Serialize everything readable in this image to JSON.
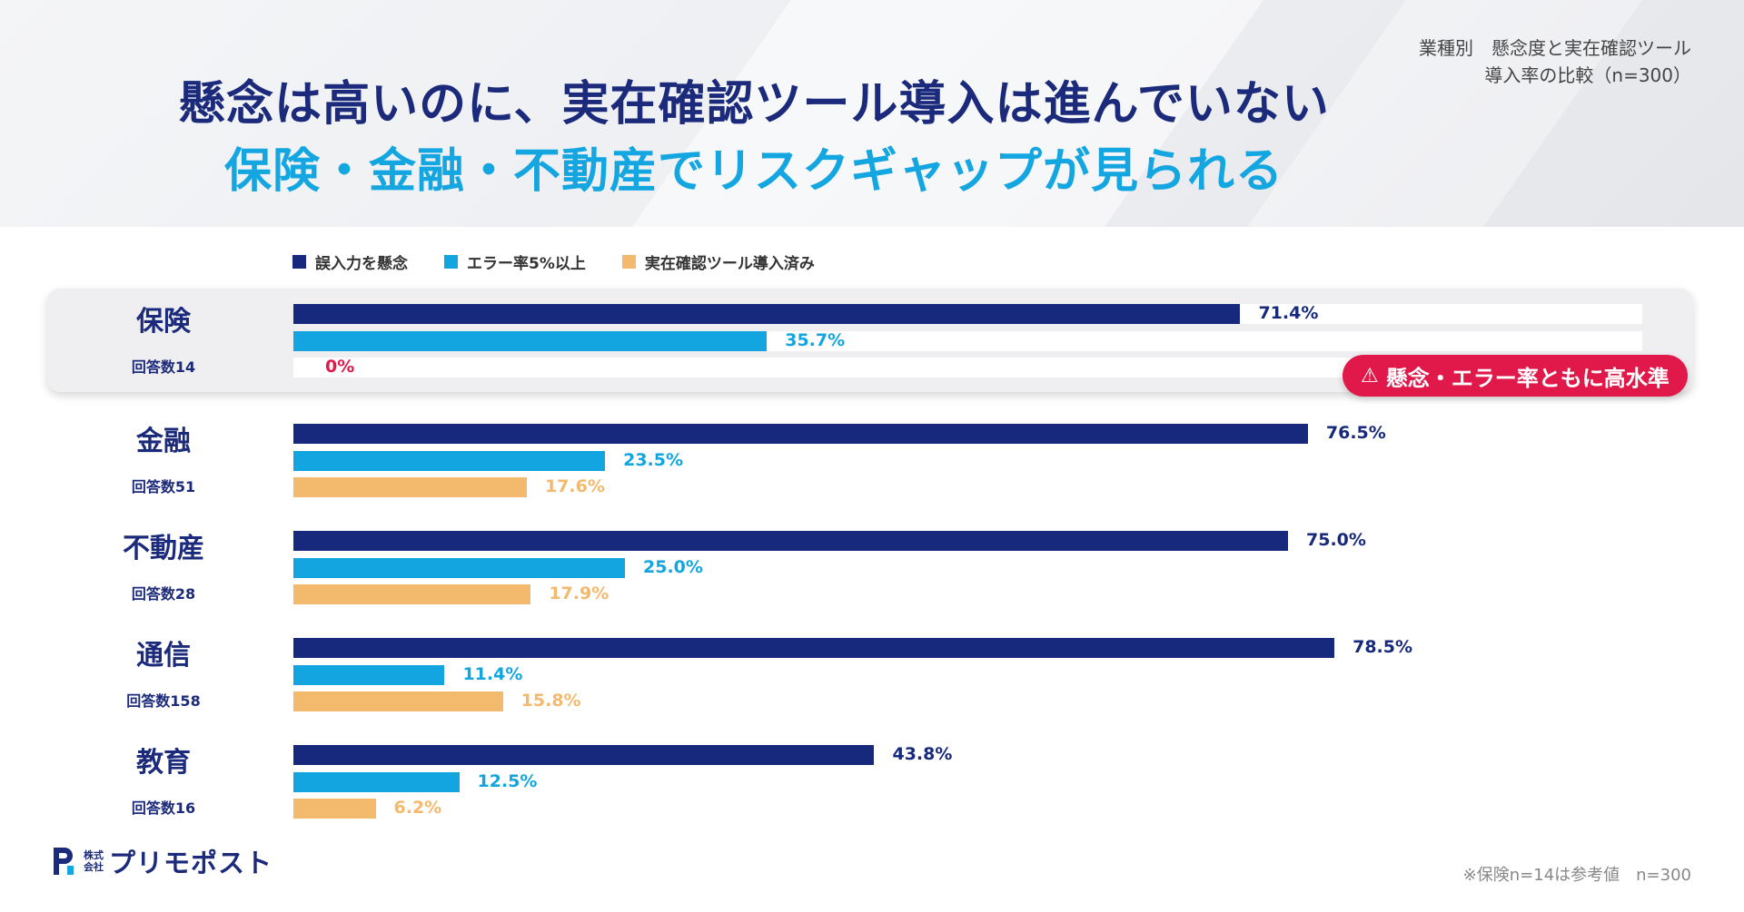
{
  "header": {
    "title_line1": "懸念は高いのに、実在確認ツール導入は進んでいない",
    "title_line2": "保険・金融・不動産でリスクギャップが見られる",
    "subnote_line1": "業種別　懸念度と実在確認ツール",
    "subnote_line2": "導入率の比較（n=300）"
  },
  "badge": {
    "icon": "warning-triangle-icon",
    "text": "懸念・エラー率ともに高水準"
  },
  "logo": {
    "small_line1": "株式",
    "small_line2": "会社",
    "name": "プリモポスト"
  },
  "footnote": "※保険n=14は参考値　n=300",
  "colors": {
    "concern": "#17297c",
    "error": "#12a5e0",
    "tool": "#f3b96d",
    "zero_label": "#e0194a",
    "badge": "#e0194a"
  },
  "chart_data": {
    "type": "bar",
    "orientation": "horizontal",
    "xlim": [
      0,
      100
    ],
    "legend": [
      "誤入力を懸念",
      "エラー率5%以上",
      "実在確認ツール導入済み"
    ],
    "legend_placement": "top-left",
    "categories": [
      {
        "name": "保険",
        "responses": "回答数14",
        "highlight": true
      },
      {
        "name": "金融",
        "responses": "回答数51"
      },
      {
        "name": "不動産",
        "responses": "回答数28"
      },
      {
        "name": "通信",
        "responses": "回答数158"
      },
      {
        "name": "教育",
        "responses": "回答数16"
      }
    ],
    "series": [
      {
        "name": "誤入力を懸念",
        "values": [
          71.4,
          76.5,
          75.0,
          78.5,
          43.8
        ],
        "labels": [
          "71.4%",
          "76.5%",
          "75.0%",
          "78.5%",
          "43.8%"
        ]
      },
      {
        "name": "エラー率5%以上",
        "values": [
          35.7,
          23.5,
          25.0,
          11.4,
          12.5
        ],
        "labels": [
          "35.7%",
          "23.5%",
          "25.0%",
          "11.4%",
          "12.5%"
        ]
      },
      {
        "name": "実在確認ツール導入済み",
        "values": [
          0,
          17.6,
          17.9,
          15.8,
          6.2
        ],
        "labels": [
          "0%",
          "17.6%",
          "17.9%",
          "15.8%",
          "6.2%"
        ]
      }
    ]
  }
}
